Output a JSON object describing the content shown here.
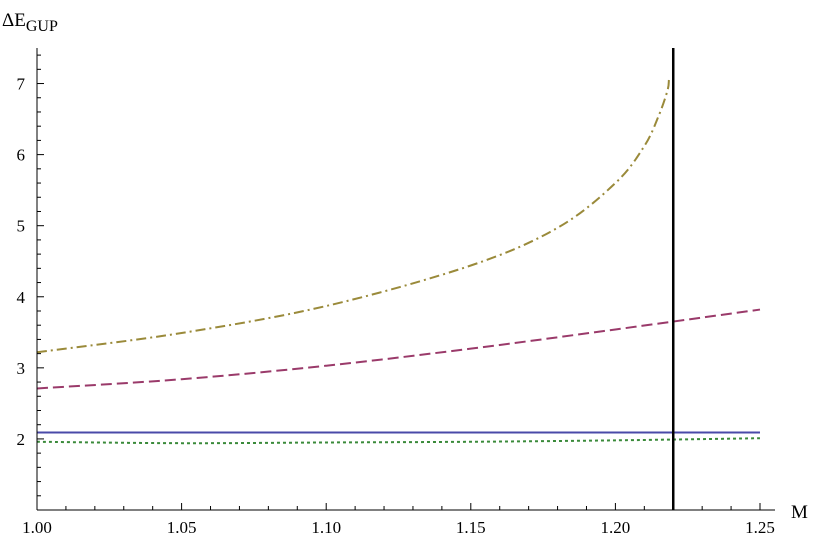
{
  "chart_data": {
    "type": "line",
    "title": "",
    "xlabel": "M",
    "ylabel_main": "ΔE",
    "ylabel_sub": "GUP",
    "xlim": [
      1.0,
      1.25
    ],
    "ylim": [
      1.0,
      7.5
    ],
    "grid": false,
    "legend": "none",
    "x_ticks": [
      "1.00",
      "1.05",
      "1.10",
      "1.15",
      "1.20",
      "1.25"
    ],
    "y_ticks": [
      "2",
      "3",
      "4",
      "5",
      "6",
      "7"
    ],
    "vertical_line": {
      "x": 1.22,
      "color": "#000000"
    },
    "series": [
      {
        "style": "solid",
        "color": "#4a4aa8",
        "x": [
          1.0,
          1.05,
          1.1,
          1.15,
          1.2,
          1.25
        ],
        "y": [
          2.09,
          2.09,
          2.09,
          2.09,
          2.09,
          2.09
        ]
      },
      {
        "style": "dotted",
        "color": "#3a8a3a",
        "x": [
          1.0,
          1.05,
          1.1,
          1.15,
          1.2,
          1.25
        ],
        "y": [
          1.96,
          1.94,
          1.95,
          1.96,
          1.98,
          2.01
        ]
      },
      {
        "style": "dashed",
        "color": "#9a3a6a",
        "x": [
          1.0,
          1.05,
          1.1,
          1.15,
          1.2,
          1.25
        ],
        "y": [
          2.71,
          2.84,
          3.03,
          3.27,
          3.54,
          3.82
        ]
      },
      {
        "style": "dashdot",
        "color": "#9a8a3a",
        "x": [
          1.0,
          1.05,
          1.1,
          1.15,
          1.18,
          1.2,
          1.21,
          1.215,
          1.218,
          1.2185
        ],
        "y": [
          3.22,
          3.49,
          3.87,
          4.44,
          4.97,
          5.6,
          6.12,
          6.55,
          6.9,
          7.05
        ]
      }
    ]
  }
}
